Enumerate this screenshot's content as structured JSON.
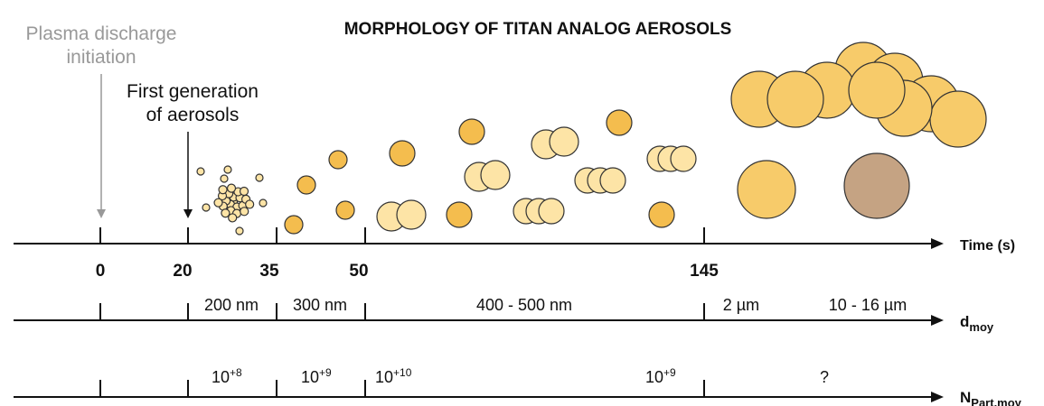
{
  "title": "MORPHOLOGY OF TITAN ANALOG AEROSOLS",
  "annotations": [
    {
      "lines": [
        "Plasma discharge",
        "initiation"
      ]
    },
    {
      "lines": [
        "First generation",
        "of aerosols"
      ]
    }
  ],
  "time_axis": {
    "label": "Time (s)",
    "ticks": [
      "0",
      "20",
      "35",
      "50",
      "145"
    ]
  },
  "d_axis": {
    "label": "d",
    "label_sub": "moy",
    "segments": [
      "200 nm",
      "300 nm",
      "400 - 500 nm",
      "2  µm",
      "10 - 16  µm"
    ]
  },
  "n_axis": {
    "label": "N",
    "label_sub": "Part.moy",
    "segments": [
      {
        "base": "10",
        "exp": "+8"
      },
      {
        "base": "10",
        "exp": "+9"
      },
      {
        "base": "10",
        "exp": "+10"
      },
      {
        "base": "10",
        "exp": "+9"
      },
      {
        "base": "?"
      }
    ]
  }
}
